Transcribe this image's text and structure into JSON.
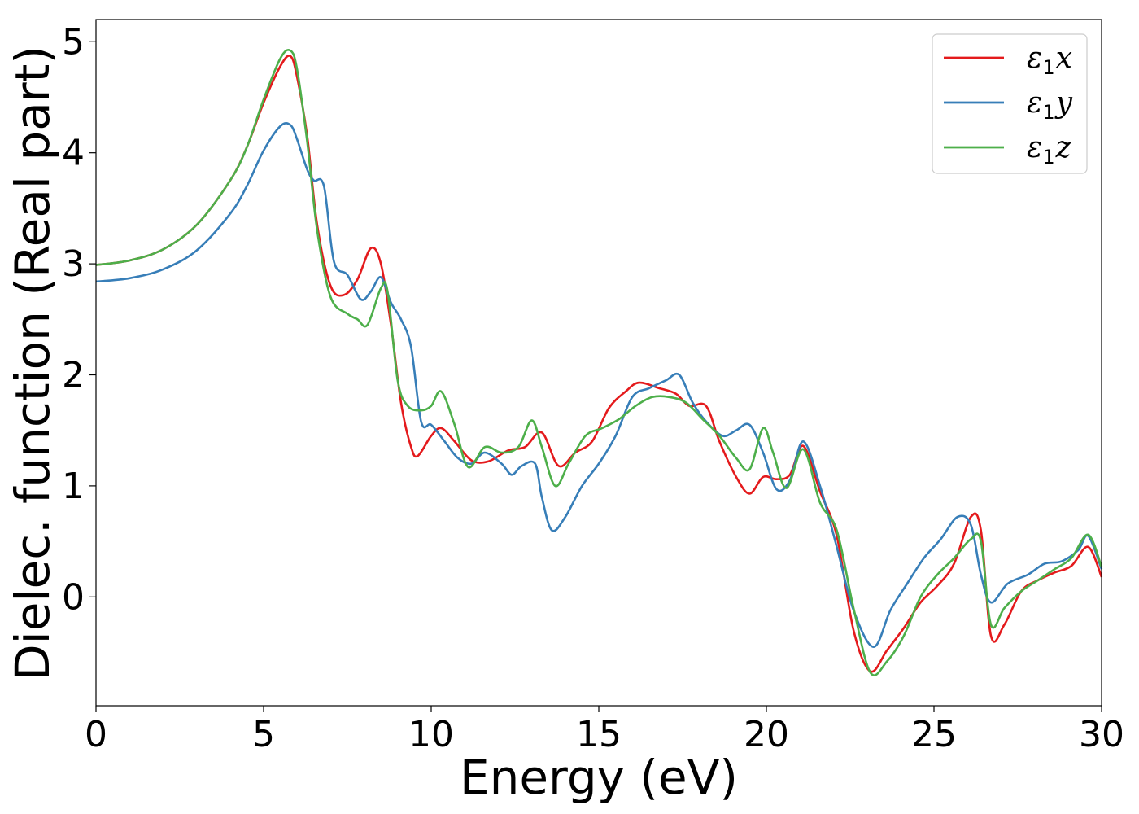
{
  "chart_data": {
    "type": "line",
    "title": "",
    "xlabel": "Energy (eV)",
    "ylabel": "Dielec. function (Real part)",
    "xlim": [
      0,
      30
    ],
    "ylim": [
      -0.98,
      5.2
    ],
    "xticks": [
      0,
      5,
      10,
      15,
      20,
      25,
      30
    ],
    "xtick_labels": [
      "0",
      "5",
      "10",
      "15",
      "20",
      "25",
      "30"
    ],
    "yticks": [
      0,
      1,
      2,
      3,
      4,
      5
    ],
    "ytick_labels": [
      "0",
      "1",
      "2",
      "3",
      "4",
      "5"
    ],
    "grid": false,
    "legend_position": "top-right",
    "series": [
      {
        "name": "ε1x",
        "symbol": "ε",
        "subscript": "1",
        "axis": "x",
        "color": "#e41a1c",
        "x": [
          0,
          1,
          2,
          3,
          4,
          4.5,
          5,
          5.5,
          5.8,
          6.0,
          6.3,
          6.6,
          7.0,
          7.4,
          7.8,
          8.2,
          8.5,
          8.8,
          9.1,
          9.4,
          9.6,
          10.0,
          10.3,
          10.7,
          11.2,
          11.7,
          12.3,
          12.8,
          13.3,
          13.8,
          14.3,
          14.8,
          15.3,
          15.8,
          16.2,
          16.8,
          17.3,
          17.7,
          18.2,
          18.6,
          19.1,
          19.5,
          19.9,
          20.3,
          20.7,
          21.1,
          21.6,
          22.1,
          22.6,
          23.1,
          23.6,
          24.1,
          24.6,
          25.1,
          25.6,
          26.1,
          26.4,
          26.7,
          27.1,
          27.6,
          28.1,
          28.6,
          29.1,
          29.6,
          30.0
        ],
        "y": [
          2.99,
          3.03,
          3.13,
          3.35,
          3.75,
          4.05,
          4.45,
          4.78,
          4.87,
          4.68,
          4.15,
          3.35,
          2.8,
          2.72,
          2.86,
          3.14,
          3.0,
          2.45,
          1.75,
          1.35,
          1.27,
          1.45,
          1.52,
          1.4,
          1.23,
          1.22,
          1.32,
          1.35,
          1.48,
          1.18,
          1.3,
          1.4,
          1.7,
          1.85,
          1.93,
          1.88,
          1.83,
          1.72,
          1.72,
          1.4,
          1.08,
          0.93,
          1.08,
          1.06,
          1.1,
          1.36,
          0.95,
          0.55,
          -0.3,
          -0.67,
          -0.48,
          -0.28,
          -0.05,
          0.1,
          0.3,
          0.72,
          0.6,
          -0.35,
          -0.25,
          0.05,
          0.15,
          0.22,
          0.28,
          0.45,
          0.18
        ]
      },
      {
        "name": "ε1y",
        "symbol": "ε",
        "subscript": "1",
        "axis": "y",
        "color": "#377eb8",
        "x": [
          0,
          1,
          2,
          3,
          4,
          4.5,
          5,
          5.5,
          5.8,
          6.0,
          6.3,
          6.5,
          6.8,
          7.1,
          7.5,
          7.9,
          8.2,
          8.5,
          8.8,
          9.1,
          9.4,
          9.7,
          10.0,
          10.4,
          10.8,
          11.2,
          11.6,
          12.1,
          12.4,
          12.7,
          13.1,
          13.3,
          13.6,
          14.0,
          14.5,
          15.0,
          15.5,
          16.0,
          16.5,
          17.0,
          17.4,
          17.8,
          18.2,
          18.7,
          19.1,
          19.5,
          19.9,
          20.3,
          20.7,
          21.1,
          21.6,
          22.1,
          22.6,
          23.2,
          23.7,
          24.2,
          24.7,
          25.2,
          25.7,
          26.1,
          26.4,
          26.7,
          27.2,
          27.8,
          28.3,
          28.8,
          29.3,
          29.6,
          30.0
        ],
        "y": [
          2.84,
          2.87,
          2.95,
          3.12,
          3.45,
          3.7,
          4.02,
          4.24,
          4.25,
          4.12,
          3.85,
          3.75,
          3.7,
          3.02,
          2.9,
          2.68,
          2.75,
          2.88,
          2.65,
          2.5,
          2.25,
          1.58,
          1.55,
          1.4,
          1.25,
          1.2,
          1.3,
          1.2,
          1.1,
          1.18,
          1.2,
          0.9,
          0.6,
          0.72,
          1.0,
          1.2,
          1.45,
          1.8,
          1.88,
          1.95,
          2.0,
          1.75,
          1.58,
          1.45,
          1.5,
          1.55,
          1.3,
          0.97,
          1.05,
          1.4,
          1.0,
          0.45,
          -0.12,
          -0.45,
          -0.12,
          0.12,
          0.35,
          0.52,
          0.72,
          0.65,
          0.2,
          -0.05,
          0.12,
          0.2,
          0.3,
          0.32,
          0.42,
          0.55,
          0.25
        ]
      },
      {
        "name": "ε1z",
        "symbol": "ε",
        "subscript": "1",
        "axis": "z",
        "color": "#4daf4a",
        "x": [
          0,
          1,
          2,
          3,
          4,
          4.5,
          5,
          5.5,
          5.8,
          6.0,
          6.3,
          6.6,
          7.0,
          7.5,
          7.8,
          8.1,
          8.5,
          8.7,
          9.0,
          9.3,
          9.7,
          10.0,
          10.3,
          10.7,
          11.1,
          11.6,
          12.1,
          12.6,
          13.0,
          13.3,
          13.7,
          14.1,
          14.6,
          15.1,
          15.6,
          16.1,
          16.6,
          17.1,
          17.6,
          18.1,
          18.6,
          19.1,
          19.5,
          19.9,
          20.2,
          20.6,
          21.1,
          21.6,
          22.1,
          22.6,
          23.1,
          23.6,
          24.1,
          24.6,
          25.1,
          25.6,
          26.1,
          26.4,
          26.7,
          27.1,
          27.6,
          28.1,
          28.6,
          29.1,
          29.6,
          30.0
        ],
        "y": [
          2.99,
          3.03,
          3.13,
          3.35,
          3.75,
          4.05,
          4.48,
          4.85,
          4.92,
          4.75,
          4.1,
          3.3,
          2.7,
          2.55,
          2.5,
          2.45,
          2.78,
          2.75,
          1.95,
          1.72,
          1.68,
          1.72,
          1.85,
          1.55,
          1.17,
          1.35,
          1.3,
          1.35,
          1.59,
          1.35,
          1.0,
          1.2,
          1.45,
          1.52,
          1.6,
          1.72,
          1.8,
          1.8,
          1.75,
          1.6,
          1.45,
          1.25,
          1.15,
          1.52,
          1.3,
          0.98,
          1.33,
          0.85,
          0.6,
          -0.1,
          -0.68,
          -0.58,
          -0.35,
          0.0,
          0.2,
          0.35,
          0.52,
          0.5,
          -0.25,
          -0.1,
          0.05,
          0.15,
          0.25,
          0.35,
          0.56,
          0.27
        ]
      }
    ]
  }
}
